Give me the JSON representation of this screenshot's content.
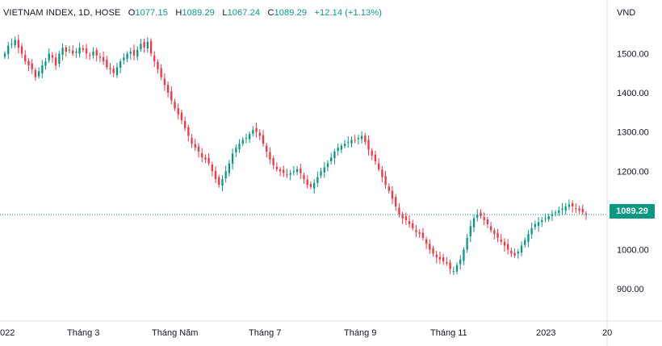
{
  "legend": {
    "symbol": "VIETNAM INDEX, 1D, HOSE",
    "o_label": "O",
    "o": "1077.15",
    "h_label": "H",
    "h": "1089.29",
    "l_label": "L",
    "l": "1067.24",
    "c_label": "C",
    "c": "1089.29",
    "change": "+12.14 (+1.13%)"
  },
  "unit": "VND",
  "last_price_label": "1089.29",
  "colors": {
    "up": "#089981",
    "down": "#f23645",
    "axis": "#e0e3eb",
    "last": "#089981"
  },
  "chart_data": {
    "type": "candlestick",
    "ylim": [
      855,
      1575
    ],
    "y_ticks": [
      {
        "value": 900,
        "label": "900.00"
      },
      {
        "value": 1000,
        "label": "1000.00"
      },
      {
        "value": 1100,
        "label": "1100.00"
      },
      {
        "value": 1200,
        "label": "1200.00"
      },
      {
        "value": 1300,
        "label": "1300.00"
      },
      {
        "value": 1400,
        "label": "1400.00"
      },
      {
        "value": 1500,
        "label": "1500.00"
      }
    ],
    "x_labels": [
      "022",
      "Tháng 3",
      "Tháng Năm",
      "Tháng 7",
      "Tháng 9",
      "Tháng 11",
      "2023",
      "20"
    ],
    "last_price": 1089.29,
    "closes": [
      1500,
      1520,
      1525,
      1535,
      1515,
      1500,
      1480,
      1470,
      1460,
      1440,
      1455,
      1470,
      1480,
      1500,
      1490,
      1470,
      1500,
      1515,
      1505,
      1510,
      1500,
      1505,
      1515,
      1510,
      1500,
      1495,
      1505,
      1495,
      1490,
      1480,
      1465,
      1460,
      1450,
      1465,
      1480,
      1490,
      1500,
      1505,
      1495,
      1510,
      1525,
      1515,
      1530,
      1500,
      1480,
      1460,
      1440,
      1420,
      1400,
      1380,
      1360,
      1345,
      1330,
      1310,
      1290,
      1270,
      1260,
      1250,
      1235,
      1230,
      1220,
      1200,
      1180,
      1165,
      1180,
      1200,
      1220,
      1245,
      1260,
      1270,
      1280,
      1285,
      1295,
      1305,
      1300,
      1290,
      1270,
      1250,
      1230,
      1215,
      1205,
      1200,
      1195,
      1190,
      1195,
      1200,
      1205,
      1195,
      1180,
      1165,
      1160,
      1170,
      1185,
      1200,
      1210,
      1220,
      1235,
      1250,
      1260,
      1265,
      1270,
      1275,
      1280,
      1278,
      1285,
      1290,
      1275,
      1255,
      1240,
      1225,
      1205,
      1185,
      1165,
      1150,
      1130,
      1110,
      1090,
      1080,
      1075,
      1065,
      1055,
      1045,
      1040,
      1030,
      1015,
      1000,
      990,
      980,
      975,
      970,
      965,
      950,
      945,
      960,
      975,
      1000,
      1030,
      1060,
      1080,
      1090,
      1085,
      1075,
      1065,
      1050,
      1040,
      1030,
      1020,
      1010,
      1000,
      990,
      985,
      995,
      1010,
      1025,
      1040,
      1055,
      1065,
      1070,
      1075,
      1080,
      1085,
      1090,
      1095,
      1100,
      1105,
      1110,
      1115,
      1110,
      1105,
      1100,
      1095,
      1089
    ]
  }
}
